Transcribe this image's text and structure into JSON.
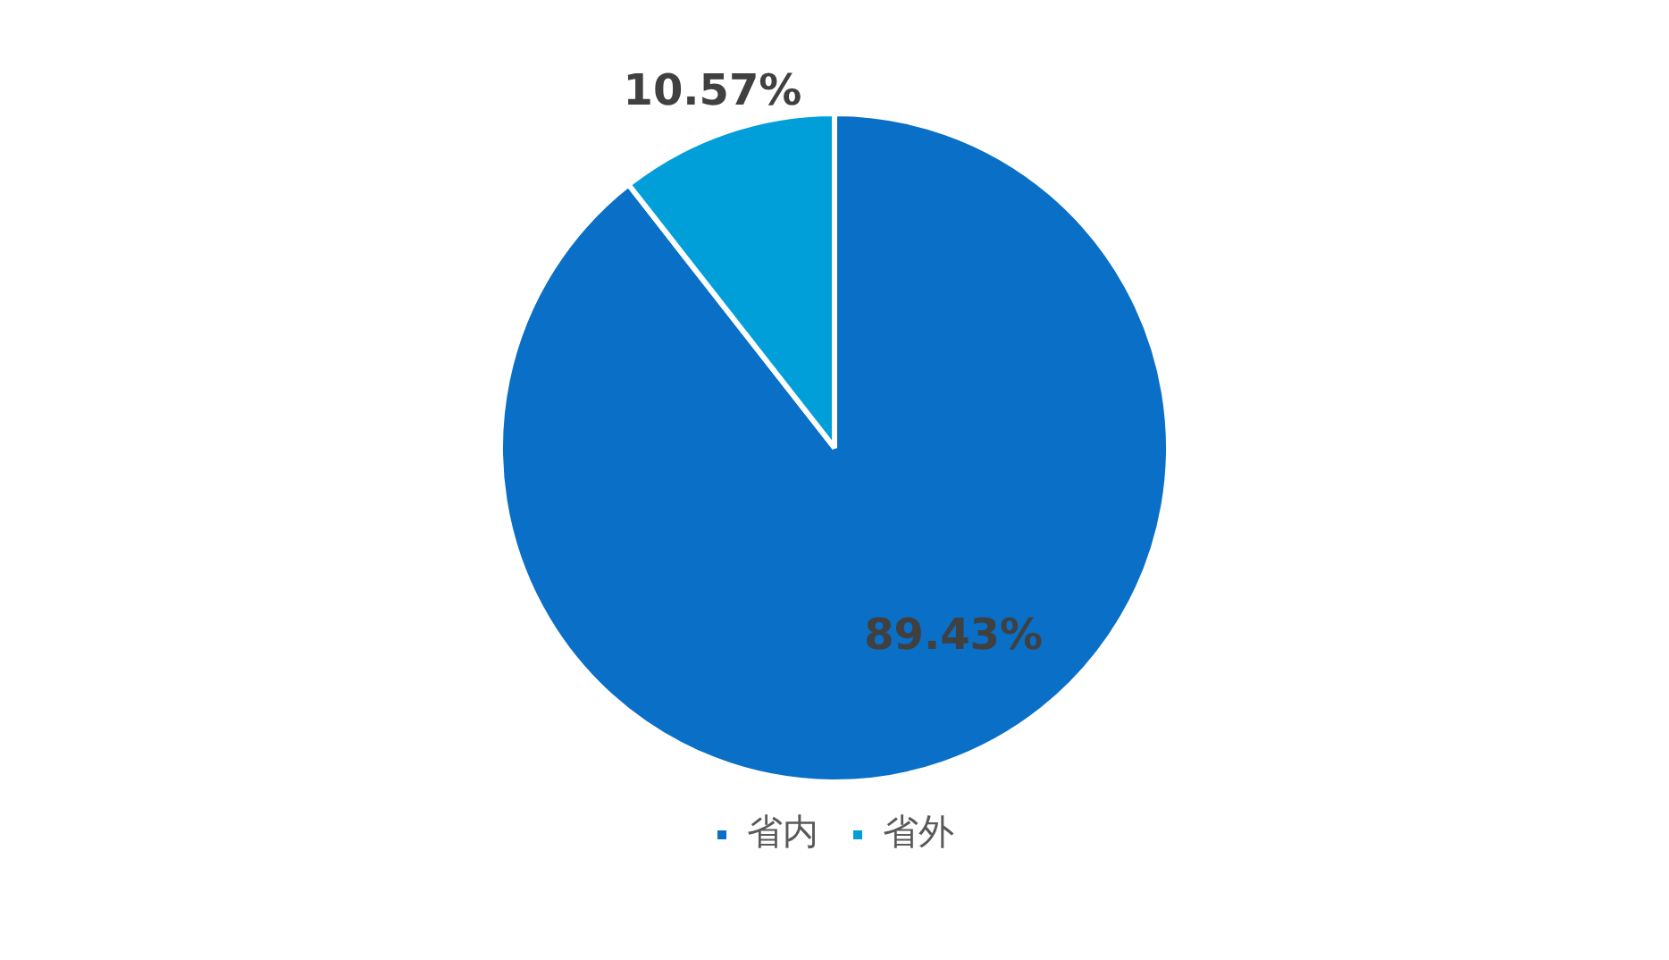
{
  "chart_data": {
    "type": "pie",
    "categories": [
      "省内",
      "省外"
    ],
    "values": [
      89.43,
      10.57
    ],
    "colors": [
      "#0a6fc6",
      "#019fd9"
    ],
    "value_labels": [
      "89.43%",
      "10.57%"
    ],
    "legend": "bottom"
  }
}
